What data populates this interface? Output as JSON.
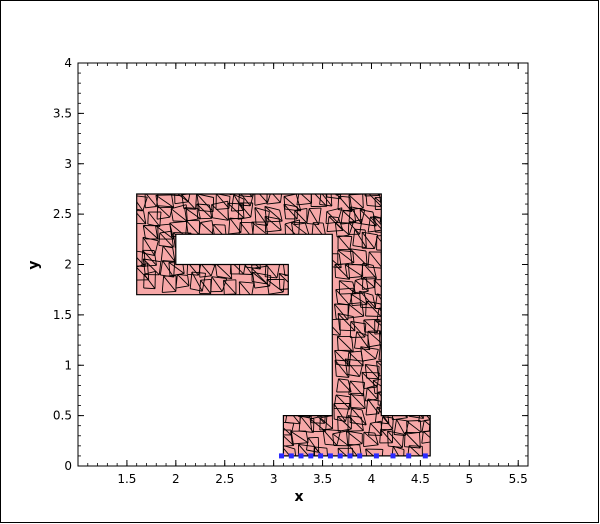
{
  "chart_data": {
    "type": "scatter",
    "xlabel": "x",
    "ylabel": "y",
    "xlim": [
      1.0,
      5.6
    ],
    "ylim": [
      0,
      4
    ],
    "x_ticks": [
      "1.5",
      "2",
      "2.5",
      "3",
      "3.5",
      "4",
      "4.5",
      "5",
      "5.5"
    ],
    "y_ticks": [
      "0",
      "0.5",
      "1",
      "1.5",
      "2",
      "2.5",
      "3",
      "3.5",
      "4"
    ],
    "grid": false,
    "legend": false,
    "mesh_fill_color": "#f7a8a8",
    "mesh_edge_color": "#000000",
    "point_color": "#2a2aff",
    "boundary_polygon": [
      [
        1.6,
        1.7
      ],
      [
        3.15,
        1.7
      ],
      [
        3.15,
        2.0
      ],
      [
        2.0,
        2.0
      ],
      [
        2.0,
        2.3
      ],
      [
        3.6,
        2.3
      ],
      [
        3.6,
        0.5
      ],
      [
        3.1,
        0.5
      ],
      [
        3.1,
        0.1
      ],
      [
        4.6,
        0.1
      ],
      [
        4.6,
        0.5
      ],
      [
        4.1,
        0.5
      ],
      [
        4.1,
        2.7
      ],
      [
        1.6,
        2.7
      ]
    ],
    "points": [
      [
        3.08,
        0.1
      ],
      [
        3.18,
        0.1
      ],
      [
        3.28,
        0.1
      ],
      [
        3.38,
        0.1
      ],
      [
        3.48,
        0.1
      ],
      [
        3.58,
        0.1
      ],
      [
        3.68,
        0.1
      ],
      [
        3.78,
        0.1
      ],
      [
        3.88,
        0.1
      ],
      [
        4.05,
        0.1
      ],
      [
        4.22,
        0.1
      ],
      [
        4.38,
        0.1
      ],
      [
        4.55,
        0.1
      ]
    ]
  }
}
